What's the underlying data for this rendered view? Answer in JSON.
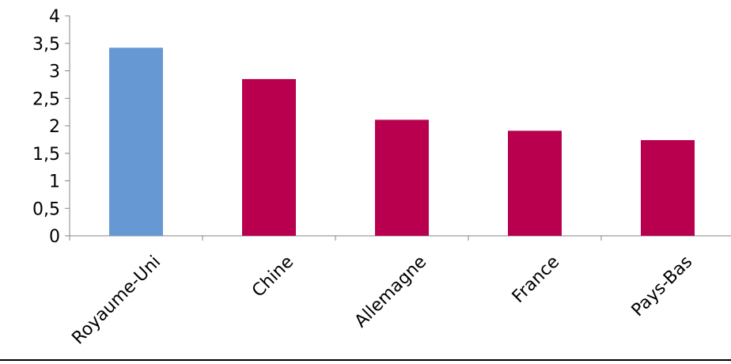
{
  "chart_data": {
    "type": "bar",
    "categories": [
      "Royaume-Uni",
      "Chine",
      "Allemagne",
      "France",
      "Pays-Bas"
    ],
    "values": [
      3.42,
      2.85,
      2.11,
      1.91,
      1.74
    ],
    "bar_colors": [
      "#6699D3",
      "#B8004F",
      "#B8004F",
      "#B8004F",
      "#B8004F"
    ],
    "ylim": [
      0,
      4
    ],
    "yticks": [
      0,
      0.5,
      1,
      1.5,
      2,
      2.5,
      3,
      3.5,
      4
    ],
    "ytick_labels": [
      "0",
      "0,5",
      "1",
      "1,5",
      "2",
      "2,5",
      "3",
      "3,5",
      "4"
    ],
    "title": "",
    "xlabel": "",
    "ylabel": "",
    "grid": false,
    "legend": "none"
  }
}
